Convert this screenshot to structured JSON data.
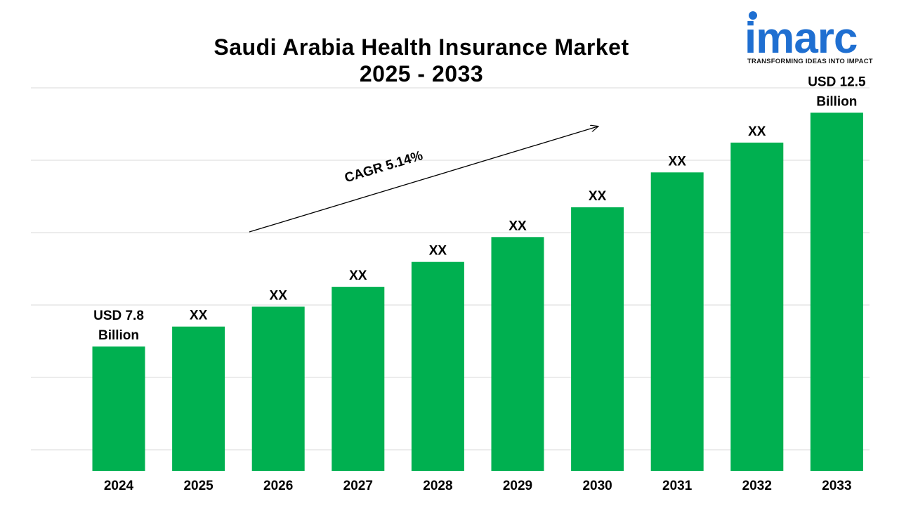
{
  "logo": {
    "word": "imarc",
    "tagline": "TRANSFORMING IDEAS INTO IMPACT"
  },
  "chart_data": {
    "type": "bar",
    "title_lines": [
      "Saudi Arabia Health Insurance Market",
      "2025 - 2033"
    ],
    "categories": [
      "2024",
      "2025",
      "2026",
      "2027",
      "2028",
      "2029",
      "2030",
      "2031",
      "2032",
      "2033"
    ],
    "values": [
      7.8,
      8.2,
      8.6,
      9.0,
      9.5,
      10.0,
      10.6,
      11.3,
      11.9,
      12.5
    ],
    "data_labels": [
      [
        "USD 7.8",
        "Billion"
      ],
      [
        "XX"
      ],
      [
        "XX"
      ],
      [
        "XX"
      ],
      [
        "XX"
      ],
      [
        "XX"
      ],
      [
        "XX"
      ],
      [
        "XX"
      ],
      [
        "XX"
      ],
      [
        "USD 12.5",
        "Billion"
      ]
    ],
    "annotation": "CAGR 5.14%",
    "unit": "USD Billion",
    "ylim": [
      5.3,
      13.0
    ],
    "grid": true,
    "bar_color": "#00b050",
    "grid_color": "#d9d9d9"
  }
}
